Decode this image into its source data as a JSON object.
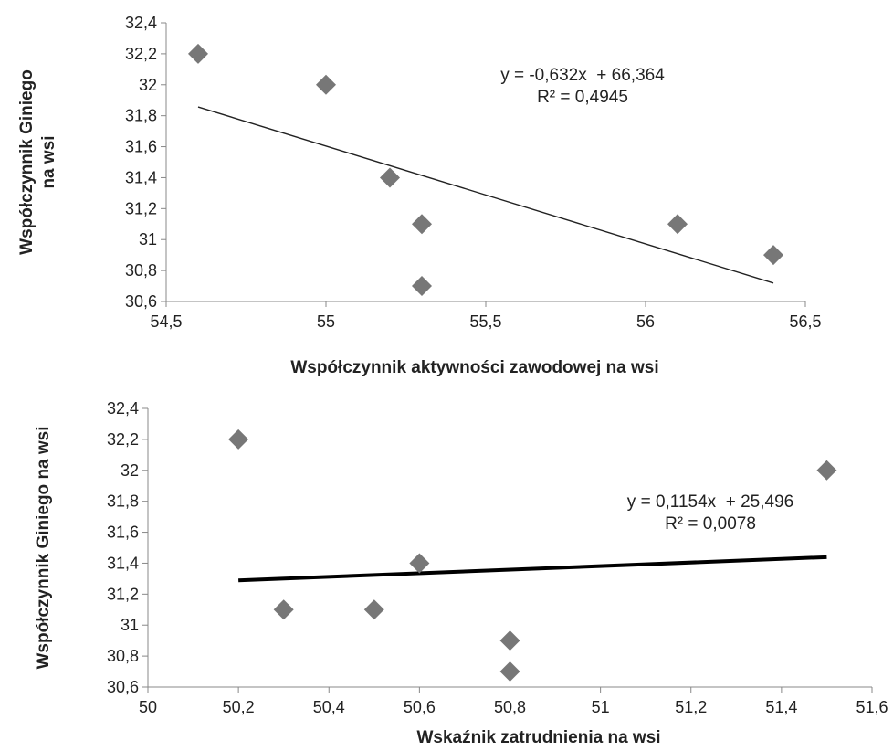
{
  "chart_data": [
    {
      "type": "scatter",
      "title": "",
      "xlabel": "Współczynnik aktywności zawodowej na wsi",
      "ylabel": [
        "Współczynnik Giniego",
        "na wsi"
      ],
      "xlim": [
        54.5,
        56.5
      ],
      "ylim": [
        30.6,
        32.4
      ],
      "x_ticks": [
        "54,5",
        "55",
        "55,5",
        "56",
        "56,5"
      ],
      "y_ticks": [
        "30,6",
        "30,8",
        "31",
        "31,2",
        "31,4",
        "31,6",
        "31,8",
        "32",
        "32,2",
        "32,4"
      ],
      "grid": false,
      "marker": "diamond",
      "marker_color": "#777777",
      "points": [
        {
          "x": 54.6,
          "y": 32.2
        },
        {
          "x": 55.0,
          "y": 32.0
        },
        {
          "x": 55.2,
          "y": 31.4
        },
        {
          "x": 55.3,
          "y": 31.1
        },
        {
          "x": 55.3,
          "y": 30.7
        },
        {
          "x": 56.1,
          "y": 31.1
        },
        {
          "x": 56.4,
          "y": 30.9
        }
      ],
      "trendline": {
        "slope": -0.632,
        "intercept": 66.364,
        "x_range": [
          54.6,
          56.4
        ],
        "equation": "y = -0,632x  + 66,364",
        "r_squared": "R² = 0,4945",
        "line_color": "#222222"
      }
    },
    {
      "type": "scatter",
      "title": "",
      "xlabel": "Wskaźnik zatrudnienia na wsi",
      "ylabel": [
        "Współczynnik Giniego na wsi"
      ],
      "xlim": [
        50.0,
        51.6
      ],
      "ylim": [
        30.6,
        32.4
      ],
      "x_ticks": [
        "50",
        "50,2",
        "50,4",
        "50,6",
        "50,8",
        "51",
        "51,2",
        "51,4",
        "51,6"
      ],
      "y_ticks": [
        "30,6",
        "30,8",
        "31",
        "31,2",
        "31,4",
        "31,6",
        "31,8",
        "32",
        "32,2",
        "32,4"
      ],
      "grid": false,
      "marker": "diamond",
      "marker_color": "#777777",
      "points": [
        {
          "x": 50.2,
          "y": 32.2
        },
        {
          "x": 50.3,
          "y": 31.1
        },
        {
          "x": 50.5,
          "y": 31.1
        },
        {
          "x": 50.6,
          "y": 31.4
        },
        {
          "x": 50.8,
          "y": 30.9
        },
        {
          "x": 50.8,
          "y": 30.7
        },
        {
          "x": 51.5,
          "y": 32.0
        }
      ],
      "trendline": {
        "slope": 0.1154,
        "intercept": 25.496,
        "x_range": [
          50.2,
          51.5
        ],
        "equation": "y = 0,1154x  + 25,496",
        "r_squared": "R² = 0,0078",
        "line_color": "#000000"
      }
    }
  ]
}
